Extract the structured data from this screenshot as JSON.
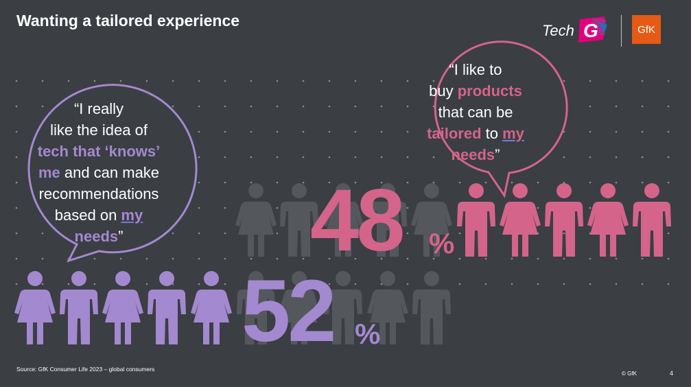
{
  "header": {
    "title": "Wanting a tailored experience",
    "logo_tech": "Tech",
    "logo_g": "G",
    "logo_gfk": "GfK"
  },
  "colors": {
    "background": "#3b3e43",
    "purple": "#a389cf",
    "pink": "#d4648a",
    "gray_figure": "#54585d",
    "gfk_orange": "#e55a14"
  },
  "stats": {
    "pink_value": "48",
    "pink_sign": "%",
    "purple_value": "52",
    "purple_sign": "%"
  },
  "quote_left": {
    "open": "“I really",
    "line2": "like the idea of",
    "hl1": "tech that ‘knows’",
    "hl2": "me",
    "rest2": " and can make",
    "line5": "recommendations",
    "line6a": "based on ",
    "ul1": "my",
    "hl3": "needs",
    "close": "”"
  },
  "quote_right": {
    "open": "“I like to",
    "line2a": "buy ",
    "hl1": "products",
    "line3": "that can be",
    "hl2": "tailored",
    "mid": " to ",
    "ul1": "my",
    "hl3": "needs",
    "close": "”"
  },
  "footer": {
    "source": "Source: GfK Consumer Life 2023 – global consumers",
    "copyright": "© GfK",
    "page_number": "4"
  },
  "figures": {
    "top_row": [
      "woman",
      "man",
      "woman",
      "man",
      "woman",
      "man",
      "woman",
      "man",
      "woman",
      "man"
    ],
    "bottom_row": [
      "woman",
      "man",
      "woman",
      "man",
      "woman",
      "man",
      "woman",
      "man",
      "woman",
      "man"
    ],
    "top_highlighted": 5,
    "bottom_highlighted": 5
  }
}
